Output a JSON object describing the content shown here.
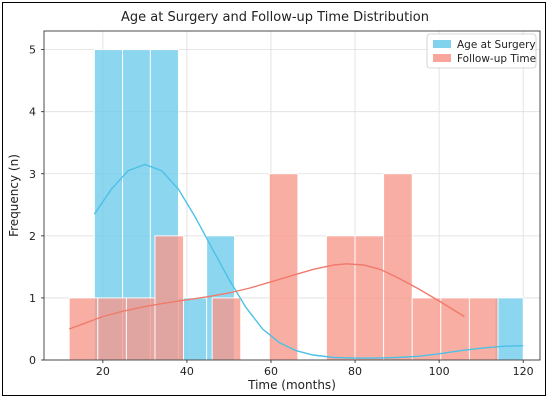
{
  "chart_data": {
    "type": "histogram",
    "title": "Age at Surgery and Follow-up Time Distribution",
    "xlabel": "Time (months)",
    "ylabel": "Frequency (n)",
    "xlim": [
      6,
      124
    ],
    "ylim": [
      0,
      5.3
    ],
    "xticks": [
      20,
      40,
      60,
      80,
      100,
      120
    ],
    "yticks": [
      0,
      1,
      2,
      3,
      4,
      5
    ],
    "grid": true,
    "legend_position": "top-right",
    "series": [
      {
        "name": "Age at Surgery",
        "color": "#6bcbea",
        "line_color": "#4cc1e6",
        "bins": [
          {
            "x0": 18,
            "x1": 24.7,
            "count": 5
          },
          {
            "x0": 24.7,
            "x1": 31.3,
            "count": 5
          },
          {
            "x0": 31.3,
            "x1": 38,
            "count": 5
          },
          {
            "x0": 38,
            "x1": 44.7,
            "count": 1
          },
          {
            "x0": 44.7,
            "x1": 51.3,
            "count": 2
          },
          {
            "x0": 113.3,
            "x1": 120,
            "count": 1
          }
        ],
        "kde": [
          [
            18,
            2.35
          ],
          [
            22,
            2.75
          ],
          [
            26,
            3.05
          ],
          [
            30,
            3.15
          ],
          [
            34,
            3.05
          ],
          [
            38,
            2.75
          ],
          [
            42,
            2.3
          ],
          [
            46,
            1.8
          ],
          [
            50,
            1.3
          ],
          [
            54,
            0.85
          ],
          [
            58,
            0.5
          ],
          [
            62,
            0.28
          ],
          [
            66,
            0.15
          ],
          [
            70,
            0.08
          ],
          [
            75,
            0.04
          ],
          [
            80,
            0.03
          ],
          [
            85,
            0.03
          ],
          [
            90,
            0.04
          ],
          [
            95,
            0.06
          ],
          [
            100,
            0.1
          ],
          [
            105,
            0.15
          ],
          [
            110,
            0.19
          ],
          [
            115,
            0.22
          ],
          [
            120,
            0.23
          ]
        ]
      },
      {
        "name": "Follow-up Time",
        "color": "#f7978b",
        "line_color": "#f07a6c",
        "bins": [
          {
            "x0": 12,
            "x1": 18.8,
            "count": 1
          },
          {
            "x0": 18.8,
            "x1": 25.6,
            "count": 1
          },
          {
            "x0": 25.6,
            "x1": 32.4,
            "count": 1
          },
          {
            "x0": 32.4,
            "x1": 39.2,
            "count": 2
          },
          {
            "x0": 39.2,
            "x1": 46,
            "count": 0
          },
          {
            "x0": 46,
            "x1": 52.8,
            "count": 1
          },
          {
            "x0": 52.8,
            "x1": 59.6,
            "count": 0
          },
          {
            "x0": 59.6,
            "x1": 66.4,
            "count": 3
          },
          {
            "x0": 66.4,
            "x1": 73.2,
            "count": 0
          },
          {
            "x0": 73.2,
            "x1": 80,
            "count": 2
          },
          {
            "x0": 80,
            "x1": 86.8,
            "count": 2
          },
          {
            "x0": 86.8,
            "x1": 93.6,
            "count": 3
          },
          {
            "x0": 93.6,
            "x1": 100.4,
            "count": 1
          },
          {
            "x0": 100.4,
            "x1": 107.2,
            "count": 1
          },
          {
            "x0": 107.2,
            "x1": 114,
            "count": 1
          }
        ],
        "kde": [
          [
            12,
            0.5
          ],
          [
            16,
            0.6
          ],
          [
            20,
            0.7
          ],
          [
            25,
            0.79
          ],
          [
            30,
            0.86
          ],
          [
            35,
            0.92
          ],
          [
            40,
            0.97
          ],
          [
            45,
            1.02
          ],
          [
            50,
            1.08
          ],
          [
            55,
            1.16
          ],
          [
            60,
            1.26
          ],
          [
            65,
            1.36
          ],
          [
            70,
            1.46
          ],
          [
            75,
            1.53
          ],
          [
            78,
            1.55
          ],
          [
            82,
            1.53
          ],
          [
            86,
            1.46
          ],
          [
            90,
            1.33
          ],
          [
            95,
            1.15
          ],
          [
            100,
            0.95
          ],
          [
            106,
            0.7
          ]
        ]
      }
    ]
  }
}
